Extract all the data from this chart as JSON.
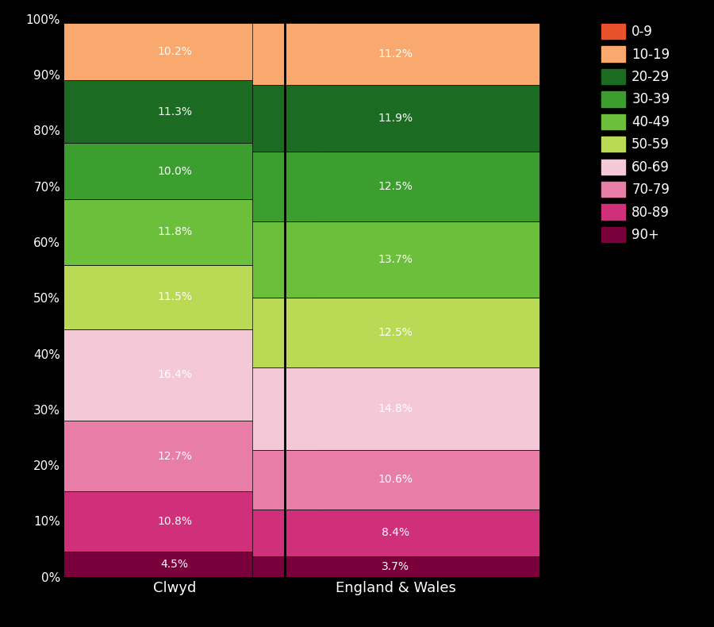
{
  "categories": [
    "Clwyd",
    "England & Wales"
  ],
  "stack_order": [
    "90+",
    "80-89",
    "70-79",
    "60-69",
    "50-59",
    "40-49",
    "30-39",
    "20-29",
    "10-19",
    "0-9"
  ],
  "clwyd_vals": [
    4.5,
    10.8,
    12.7,
    16.4,
    11.5,
    11.8,
    10.0,
    11.3,
    10.2
  ],
  "ew_vals": [
    3.7,
    8.4,
    10.6,
    14.8,
    12.5,
    13.7,
    12.5,
    11.9,
    11.2
  ],
  "clwyd_labels": [
    "4.5%",
    "10.8%",
    "12.7%",
    "16.4%",
    "11.5%",
    "11.8%",
    "10.0%",
    "11.3%",
    "10.2%"
  ],
  "ew_labels": [
    "3.7%",
    "8.4%",
    "10.6%",
    "14.8%",
    "12.5%",
    "13.7%",
    "12.5%",
    "11.9%",
    "11.2%"
  ],
  "colors": {
    "0-9": "#E8522A",
    "10-19": "#F9A96E",
    "20-29": "#1C6B22",
    "30-39": "#3D9E30",
    "40-49": "#6BBF3A",
    "50-59": "#BADA55",
    "60-69": "#F5C8D8",
    "70-79": "#E87DA8",
    "80-89": "#D0307A",
    "90+": "#7A003C"
  },
  "legend_order": [
    "0-9",
    "10-19",
    "20-29",
    "30-39",
    "40-49",
    "50-59",
    "60-69",
    "70-79",
    "80-89",
    "90+"
  ],
  "background_color": "#000000",
  "text_color": "#ffffff",
  "bar_text_color": "#ffffff",
  "figsize": [
    9.0,
    7.9
  ],
  "dpi": 100,
  "bar_width": 0.65,
  "x_positions": [
    0.25,
    0.75
  ],
  "xlim": [
    0.0,
    1.18
  ],
  "vline_x": 0.5,
  "yticks": [
    0,
    10,
    20,
    30,
    40,
    50,
    60,
    70,
    80,
    90,
    100
  ],
  "ylabel_fontsize": 11,
  "xlabel_fontsize": 13,
  "label_fontsize": 10
}
